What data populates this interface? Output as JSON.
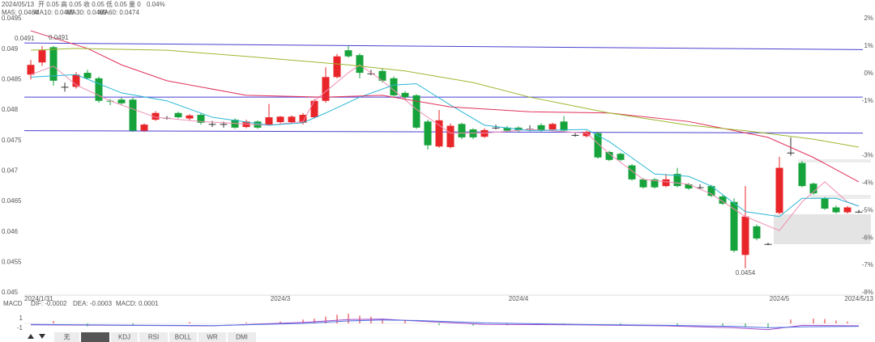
{
  "chart_data": {
    "type": "candlestick",
    "info": [
      "2024/05/13",
      "开 0.05",
      "高 0.05",
      "收 0.05",
      "低 0.05",
      "量 0",
      "0.04%"
    ],
    "categories": [
      "2024/1/31",
      null,
      null,
      null,
      null,
      null,
      null,
      null,
      null,
      null,
      null,
      null,
      null,
      null,
      null,
      null,
      null,
      null,
      null,
      null,
      null,
      null,
      "2024/3",
      null,
      null,
      null,
      null,
      null,
      null,
      null,
      null,
      null,
      null,
      null,
      null,
      null,
      null,
      null,
      null,
      null,
      null,
      null,
      null,
      "2024/4",
      null,
      null,
      null,
      null,
      null,
      null,
      null,
      null,
      null,
      null,
      null,
      null,
      null,
      null,
      null,
      null,
      null,
      null,
      null,
      null,
      null,
      null,
      "2024/5",
      null,
      null,
      null,
      null,
      null,
      null,
      "2024/5/13"
    ],
    "open": [
      0.04858,
      0.04878,
      0.04903,
      0.04838,
      0.04838,
      0.04861,
      0.04852,
      0.04815,
      0.04817,
      0.04817,
      0.04766,
      0.04784,
      0.04787,
      0.04795,
      0.04786,
      0.04792,
      0.04777,
      0.04777,
      0.04784,
      0.04772,
      0.04781,
      0.04776,
      0.0478,
      0.0478,
      0.04779,
      0.04788,
      0.04815,
      0.04854,
      0.04898,
      0.0489,
      0.0486,
      0.04864,
      0.04852,
      0.04828,
      0.04824,
      0.04781,
      0.0474,
      0.04739,
      0.04777,
      0.04768,
      0.04756,
      0.04771,
      0.04771,
      0.04771,
      0.04769,
      0.04775,
      0.04768,
      0.04781,
      0.04759,
      0.04757,
      0.04762,
      0.04731,
      0.04728,
      0.04709,
      0.04686,
      0.04686,
      0.04675,
      0.04695,
      0.04678,
      0.04673,
      0.04675,
      0.04658,
      0.04649,
      0.04562,
      0.04609,
      0.0458,
      0.04631,
      0.0473,
      0.04713,
      0.04679,
      0.04655,
      0.0464,
      0.04632,
      0.04633
    ],
    "high": [
      0.04882,
      0.04905,
      0.04905,
      0.04845,
      0.04862,
      0.04866,
      0.04855,
      0.04818,
      0.0482,
      0.0482,
      0.04778,
      0.04798,
      0.0479,
      0.04797,
      0.04793,
      0.04794,
      0.04782,
      0.04781,
      0.04786,
      0.04784,
      0.04783,
      0.0481,
      0.0479,
      0.04791,
      0.04795,
      0.04818,
      0.0487,
      0.04892,
      0.04905,
      0.04893,
      0.04866,
      0.04868,
      0.04855,
      0.04831,
      0.04826,
      0.04784,
      0.048,
      0.04778,
      0.04779,
      0.0477,
      0.0477,
      0.04776,
      0.04774,
      0.04773,
      0.04775,
      0.04778,
      0.04779,
      0.0479,
      0.04762,
      0.04766,
      0.04764,
      0.04733,
      0.0473,
      0.04711,
      0.04688,
      0.04688,
      0.04695,
      0.04705,
      0.0468,
      0.04678,
      0.04677,
      0.0466,
      0.04655,
      0.04675,
      0.04612,
      0.04582,
      0.04723,
      0.04755,
      0.04716,
      0.04681,
      0.04657,
      0.04643,
      0.04642,
      0.04636
    ],
    "low": [
      0.0485,
      0.04872,
      0.0484,
      0.0483,
      0.04835,
      0.0485,
      0.04812,
      0.04808,
      0.04808,
      0.04764,
      0.04764,
      0.04782,
      0.04784,
      0.04786,
      0.04783,
      0.04776,
      0.04772,
      0.04771,
      0.04769,
      0.0477,
      0.04769,
      0.04774,
      0.04778,
      0.04778,
      0.04776,
      0.04786,
      0.04812,
      0.04852,
      0.04886,
      0.04852,
      0.04857,
      0.04845,
      0.04822,
      0.04818,
      0.04769,
      0.04735,
      0.04738,
      0.04737,
      0.04752,
      0.04752,
      0.04754,
      0.04768,
      0.04764,
      0.04764,
      0.04765,
      0.04764,
      0.04766,
      0.04764,
      0.04756,
      0.04755,
      0.0472,
      0.04716,
      0.04716,
      0.04684,
      0.04671,
      0.04671,
      0.04673,
      0.04673,
      0.04669,
      0.0467,
      0.04657,
      0.04644,
      0.04566,
      0.0454,
      0.04586,
      0.04578,
      0.04629,
      0.04725,
      0.04673,
      0.04661,
      0.04636,
      0.0463,
      0.0463,
      0.04631
    ],
    "close": [
      0.04874,
      0.04898,
      0.04848,
      0.04838,
      0.04858,
      0.04852,
      0.04815,
      0.04814,
      0.04811,
      0.04766,
      0.04776,
      0.04795,
      0.04787,
      0.04788,
      0.04791,
      0.04779,
      0.04777,
      0.04777,
      0.04771,
      0.04781,
      0.04771,
      0.04788,
      0.04789,
      0.04789,
      0.04792,
      0.04815,
      0.04854,
      0.04888,
      0.04888,
      0.04861,
      0.0486,
      0.04848,
      0.04824,
      0.04821,
      0.04771,
      0.04742,
      0.04783,
      0.04774,
      0.04755,
      0.04755,
      0.04767,
      0.04771,
      0.04766,
      0.04766,
      0.04769,
      0.04766,
      0.04777,
      0.04766,
      0.04759,
      0.04764,
      0.04722,
      0.04718,
      0.04718,
      0.04686,
      0.04673,
      0.04673,
      0.04686,
      0.04675,
      0.04671,
      0.04673,
      0.04659,
      0.04646,
      0.04569,
      0.04625,
      0.04589,
      0.0458,
      0.04705,
      0.0473,
      0.04675,
      0.04663,
      0.04638,
      0.04632,
      0.0464,
      0.04633
    ],
    "up_color": "#e8262a",
    "down_color": "#17a33b",
    "series": [
      {
        "name": "MA5: 0.0464",
        "color": "#f08cb4",
        "x": [
          0,
          2,
          4,
          7,
          11,
          15,
          21,
          24,
          25,
          28,
          29,
          31,
          34,
          37,
          40,
          44,
          49,
          51,
          54,
          58,
          60,
          63,
          66,
          68,
          70,
          72,
          73
        ],
        "values": [
          0.04858,
          0.04872,
          0.04841,
          0.04815,
          0.04788,
          0.04781,
          0.04775,
          0.04781,
          0.04815,
          0.04861,
          0.04874,
          0.04848,
          0.04801,
          0.04762,
          0.04762,
          0.04768,
          0.04762,
          0.04728,
          0.04686,
          0.04678,
          0.04662,
          0.04625,
          0.04602,
          0.04649,
          0.04682,
          0.04649,
          0.04642
        ]
      },
      {
        "name": "MA10: 0.0465",
        "color": "#2bb7d6",
        "x": [
          0,
          4,
          8,
          12,
          16,
          21,
          24,
          26,
          29,
          32,
          34,
          37,
          40,
          44,
          49,
          51,
          55,
          58,
          60,
          63,
          66,
          68,
          71,
          73
        ],
        "values": [
          0.04854,
          0.04858,
          0.04828,
          0.04815,
          0.04788,
          0.04775,
          0.04779,
          0.04795,
          0.04821,
          0.04841,
          0.04843,
          0.04808,
          0.04775,
          0.04766,
          0.04768,
          0.04748,
          0.04695,
          0.04691,
          0.04675,
          0.04633,
          0.04625,
          0.04655,
          0.04655,
          0.04642
        ]
      },
      {
        "name": "MA30: 0.0469",
        "color": "#e0305a",
        "x": [
          0,
          5,
          8,
          12,
          19,
          26,
          31,
          37,
          44,
          51,
          58,
          65,
          69,
          73
        ],
        "values": [
          0.0493,
          0.04901,
          0.04874,
          0.04848,
          0.04824,
          0.04821,
          0.04824,
          0.04805,
          0.04797,
          0.04795,
          0.04781,
          0.04755,
          0.04722,
          0.04682
        ]
      },
      {
        "name": "MA60: 0.0474",
        "color": "#9cb830",
        "x": [
          0,
          4,
          12,
          19,
          28,
          33,
          39,
          44,
          51,
          58,
          63,
          69,
          73
        ],
        "values": [
          0.04898,
          0.04901,
          0.04898,
          0.04888,
          0.04874,
          0.04864,
          0.04845,
          0.04821,
          0.04795,
          0.04775,
          0.04766,
          0.04752,
          0.04739
        ]
      }
    ],
    "trend_lines": [
      {
        "label": "0.0491",
        "start": 0.0491,
        "end": 0.04899,
        "color": "#4a3fd0"
      },
      {
        "start": 0.04821,
        "end": 0.04821,
        "color": "#4a3fd0"
      },
      {
        "start": 0.04766,
        "end": 0.04762,
        "color": "#4a3fd0"
      }
    ],
    "high_label": "0.0491",
    "low_label": "0.0454",
    "low_value": 0.0454,
    "ylim": [
      0.045,
      0.0495
    ],
    "yticks": [
      0.0495,
      0.049,
      0.0485,
      0.048,
      0.0475,
      0.047,
      0.0465,
      0.046,
      0.0455,
      0.045
    ],
    "y2lim": [
      -8,
      2
    ],
    "y2ticks": [
      {
        "value": 2,
        "label": "2%"
      },
      {
        "value": 1,
        "label": "1%"
      },
      {
        "value": 0,
        "label": "0%"
      },
      {
        "value": -1,
        "label": "-1%"
      },
      {
        "value": -3,
        "label": "-3%"
      },
      {
        "value": -4,
        "label": "-4%"
      },
      {
        "value": -5,
        "label": "-5%"
      },
      {
        "value": -6,
        "label": "-6%"
      },
      {
        "value": -7,
        "label": "-7%"
      },
      {
        "value": -8,
        "label": "-8%"
      }
    ],
    "macd": {
      "title": "MACD",
      "ylim": [
        -2,
        2
      ],
      "yticks": [
        1,
        -1
      ],
      "series": [
        {
          "name": "DIF: -0.0002",
          "color": "#a24ccc",
          "x": [
            0,
            8,
            16,
            24,
            28,
            31,
            34,
            40,
            48,
            56,
            62,
            65,
            68,
            73
          ],
          "values": [
            -0.3,
            -0.4,
            -0.5,
            0.2,
            0.8,
            0.9,
            0.5,
            -0.2,
            -0.3,
            -0.5,
            -0.9,
            -1.3,
            -0.4,
            -0.5
          ]
        },
        {
          "name": "DEA: -0.0003",
          "color": "#4f6fe0",
          "x": [
            0,
            8,
            16,
            24,
            28,
            31,
            34,
            40,
            48,
            56,
            62,
            65,
            68,
            73
          ],
          "values": [
            -0.2,
            -0.35,
            -0.45,
            0,
            0.5,
            0.7,
            0.6,
            0.1,
            -0.2,
            -0.4,
            -0.6,
            -0.9,
            -0.7,
            -0.6
          ]
        }
      ],
      "macd_label": "MACD: 0.0001",
      "macd_color": "#d0304a",
      "bars_x": [
        2,
        5,
        9,
        14,
        19,
        22,
        24,
        25,
        26,
        27,
        28,
        29,
        30,
        31,
        33,
        36,
        39,
        42,
        47,
        52,
        57,
        61,
        63,
        65,
        67,
        69,
        70,
        71,
        72
      ],
      "bars": [
        0.5,
        -0.6,
        -0.4,
        0.3,
        0.2,
        0.4,
        0.8,
        1.0,
        1.4,
        1.8,
        2.0,
        1.6,
        1.4,
        1.0,
        0.6,
        -0.4,
        -0.5,
        -0.4,
        -0.3,
        -0.3,
        -0.4,
        -0.5,
        -0.8,
        -1.0,
        0.8,
        1.0,
        0.9,
        0.6,
        0.4
      ]
    },
    "tabs": [
      "无",
      "MACD",
      "KDJ",
      "RSI",
      "BOLL",
      "WR",
      "DMI"
    ],
    "selected_tab": 1
  }
}
